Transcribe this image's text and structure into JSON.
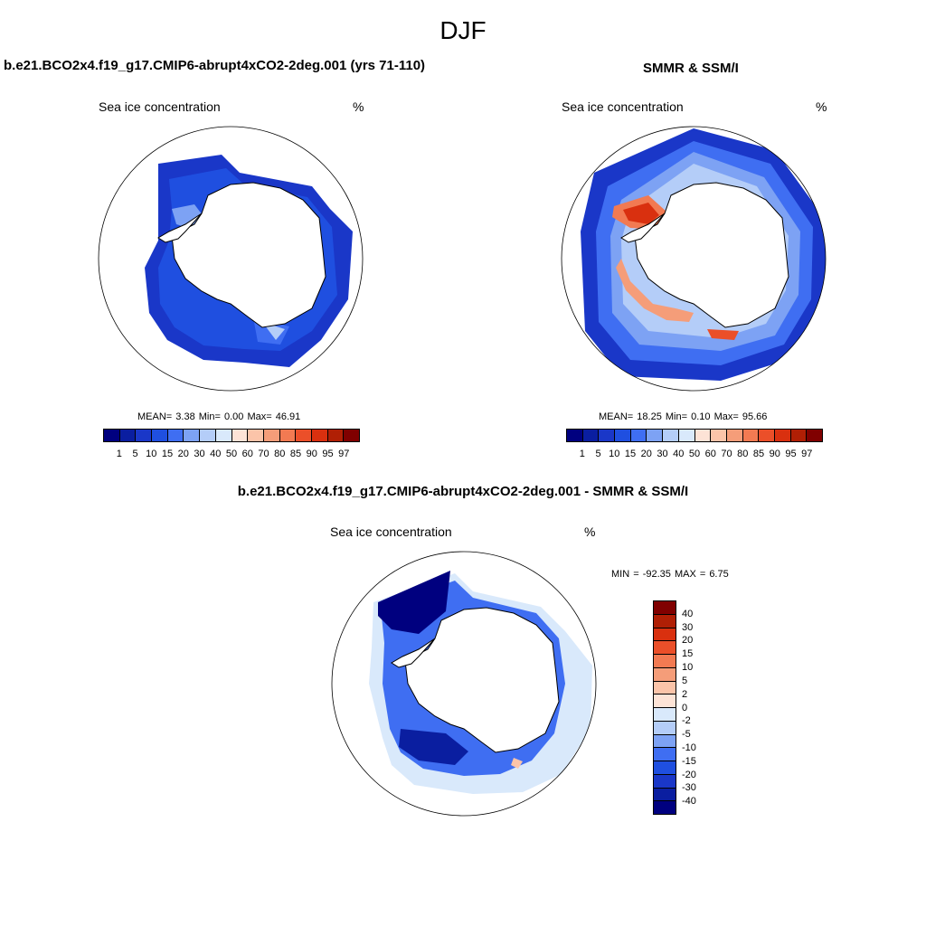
{
  "figure_title": "DJF",
  "colors": {
    "conc_scale": [
      "#00007f",
      "#0a1ea0",
      "#1a37c8",
      "#1f4fe0",
      "#3f6ef2",
      "#7da2f4",
      "#b4cdf8",
      "#d9e9fb",
      "#fde3d6",
      "#fbc4a9",
      "#f59d79",
      "#f27a52",
      "#eb4f29",
      "#d9300f",
      "#b01f05",
      "#800000"
    ],
    "diff_scale": [
      "#00007f",
      "#0a1ea0",
      "#1a37c8",
      "#1f4fe0",
      "#3f6ef2",
      "#7da2f4",
      "#b4cdf8",
      "#d9e9fb",
      "#fde3d6",
      "#fbc4a9",
      "#f59d79",
      "#f27a52",
      "#eb4f29",
      "#d9300f",
      "#b01f05",
      "#800000"
    ],
    "land": "#ffffff",
    "coast": "#000000"
  },
  "chart_data": [
    {
      "type": "heatmap",
      "projection": "south-polar-stereographic",
      "title": "b.e21.BCO2x4.f19_g17.CMIP6-abrupt4xCO2-2deg.001 (yrs 71-110)",
      "subtitle_left": "Sea ice concentration",
      "units": "%",
      "stats": {
        "mean_label": "MEAN=",
        "mean": "3.38",
        "min_label": "Min=",
        "min": "0.00",
        "max_label": "Max=",
        "max": "46.91"
      },
      "colorbar_levels": [
        "1",
        "5",
        "10",
        "15",
        "20",
        "30",
        "40",
        "50",
        "60",
        "70",
        "80",
        "85",
        "90",
        "95",
        "97"
      ],
      "colorbar_orientation": "horizontal"
    },
    {
      "type": "heatmap",
      "projection": "south-polar-stereographic",
      "title": "SMMR & SSM/I",
      "subtitle_left": "Sea ice concentration",
      "units": "%",
      "stats": {
        "mean_label": "MEAN=",
        "mean": "18.25",
        "min_label": "Min=",
        "min": "0.10",
        "max_label": "Max=",
        "max": "95.66"
      },
      "colorbar_levels": [
        "1",
        "5",
        "10",
        "15",
        "20",
        "30",
        "40",
        "50",
        "60",
        "70",
        "80",
        "85",
        "90",
        "95",
        "97"
      ],
      "colorbar_orientation": "horizontal"
    },
    {
      "type": "heatmap",
      "projection": "south-polar-stereographic",
      "title": "b.e21.BCO2x4.f19_g17.CMIP6-abrupt4xCO2-2deg.001 - SMMR & SSM/I",
      "subtitle_left": "Sea ice concentration",
      "units": "%",
      "minmax": "MIN = -92.35 MAX =   6.75",
      "colorbar_levels": [
        "40",
        "30",
        "20",
        "15",
        "10",
        "5",
        "2",
        "0",
        "-2",
        "-5",
        "-10",
        "-15",
        "-20",
        "-30",
        "-40"
      ],
      "colorbar_orientation": "vertical"
    }
  ]
}
